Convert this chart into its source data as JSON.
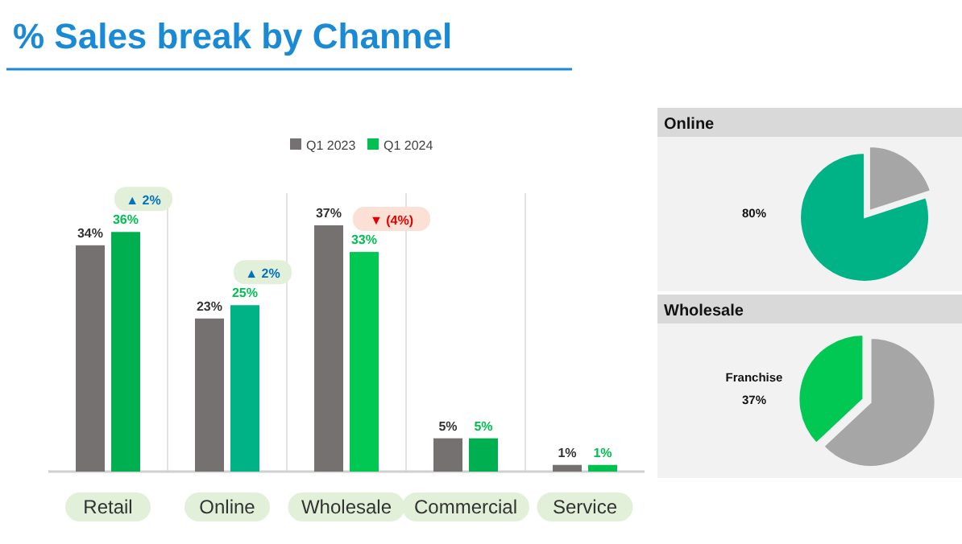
{
  "chart_data": [
    {
      "type": "bar",
      "title": "% Sales break by Channel",
      "categories": [
        "Retail",
        "Online",
        "Wholesale",
        "Commercial",
        "Service"
      ],
      "series": [
        {
          "name": "Q1 2023",
          "color": "#767171",
          "values": [
            34,
            23,
            37,
            5,
            1
          ],
          "value_labels": [
            "34%",
            "23%",
            "37%",
            "5%",
            "1%"
          ]
        },
        {
          "name": "Q1 2024",
          "color": "#00c050",
          "colors": [
            "#00b050",
            "#00b386",
            "#00c853",
            "#00b050",
            "#00c050"
          ],
          "values": [
            36,
            25,
            33,
            5,
            1
          ],
          "value_labels": [
            "36%",
            "25%",
            "33%",
            "5%",
            "1%"
          ]
        }
      ],
      "annotations": [
        {
          "text": "▲ 2%",
          "x": "Retail",
          "y": 36
        },
        {
          "text": "▲ 2%",
          "x": "Online",
          "y": 25
        },
        {
          "text": "▼ (4%)",
          "x": "Wholesale",
          "y": 33
        }
      ],
      "legend": "top"
    },
    {
      "type": "pie",
      "title": "Online",
      "categories": [
        null,
        null
      ],
      "values": [
        20,
        80
      ],
      "colors": [
        "#a6a6a6",
        "#00b386"
      ],
      "value_labels": [
        null,
        "80%"
      ]
    },
    {
      "type": "pie",
      "title": "Wholesale",
      "categories": [
        null,
        "Franchise"
      ],
      "values": [
        63,
        37
      ],
      "colors": [
        "#a6a6a6",
        "#00c853"
      ],
      "value_labels": [
        null,
        "37%"
      ]
    }
  ]
}
